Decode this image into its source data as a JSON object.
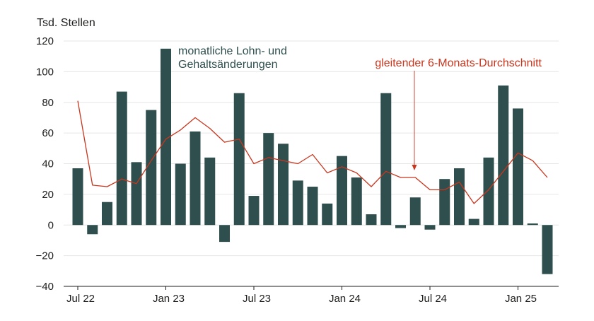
{
  "chart_data": {
    "type": "bar",
    "ylabel": "Tsd. Stellen",
    "ylim": [
      -40,
      120
    ],
    "yticks": [
      120,
      100,
      80,
      60,
      40,
      20,
      0,
      -20,
      -40
    ],
    "ytick_labels": [
      "120",
      "100",
      "80",
      "60",
      "40",
      "20",
      "0",
      "−20",
      "−40"
    ],
    "grid": true,
    "xtick_labels": [
      {
        "label": "Jul 22",
        "index": 0
      },
      {
        "label": "Jan 23",
        "index": 6
      },
      {
        "label": "Jul 23",
        "index": 12
      },
      {
        "label": "Jan 24",
        "index": 18
      },
      {
        "label": "Jul 24",
        "index": 24
      },
      {
        "label": "Jan 25",
        "index": 30
      }
    ],
    "categories": [
      "Jul 22",
      "Aug 22",
      "Sep 22",
      "Oct 22",
      "Nov 22",
      "Dec 22",
      "Jan 23",
      "Feb 23",
      "Mar 23",
      "Apr 23",
      "May 23",
      "Jun 23",
      "Jul 23",
      "Aug 23",
      "Sep 23",
      "Oct 23",
      "Nov 23",
      "Dec 23",
      "Jan 24",
      "Feb 24",
      "Mar 24",
      "Apr 24",
      "May 24",
      "Jun 24",
      "Jul 24",
      "Aug 24",
      "Sep 24",
      "Oct 24",
      "Nov 24",
      "Dec 24",
      "Jan 25",
      "Feb 25",
      "Mar 25"
    ],
    "series": [
      {
        "name": "monatliche Lohn- und Gehaltsänderungen",
        "kind": "bar",
        "color": "#2f4f4f",
        "values": [
          37,
          -6,
          15,
          87,
          41,
          75,
          115,
          40,
          61,
          44,
          -11,
          86,
          19,
          60,
          53,
          29,
          25,
          14,
          45,
          31,
          7,
          86,
          -2,
          18,
          -3,
          30,
          37,
          4,
          44,
          91,
          76,
          1,
          -32
        ]
      },
      {
        "name": "gleitender 6-Monats-Durchschnitt",
        "kind": "line",
        "color": "#c8361e",
        "values": [
          81,
          26,
          25,
          30,
          27,
          42,
          56,
          62,
          70,
          63,
          54,
          56,
          40,
          44,
          42,
          40,
          46,
          34,
          38,
          34,
          25,
          35,
          31,
          31,
          23,
          23,
          28,
          14,
          23,
          35,
          47,
          42,
          31
        ]
      }
    ],
    "annotations": [
      {
        "lines": [
          "monatliche Lohn- und",
          "Gehaltsänderungen"
        ],
        "color": "#2f4f4f"
      },
      {
        "lines": [
          "gleitender 6-Monats-Durchschnitt"
        ],
        "color": "#c8361e"
      }
    ]
  }
}
